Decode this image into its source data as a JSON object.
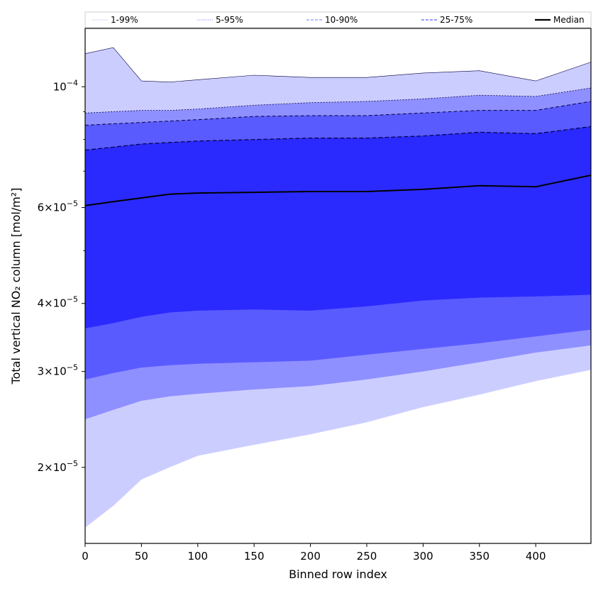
{
  "chart_data": {
    "type": "area",
    "title": "",
    "xlabel": "Binned row index",
    "ylabel": "Total vertical NO₂ column [mol/m²]",
    "xlim": [
      0,
      449
    ],
    "ylim": [
      1.45e-05,
      0.000128
    ],
    "y_scale": "log",
    "grid": false,
    "legend_position": "top",
    "x_ticks": [
      0,
      50,
      100,
      150,
      200,
      250,
      300,
      350,
      400
    ],
    "y_ticks": [
      {
        "value": 2e-05,
        "mantissa": "2",
        "exponent": "−5"
      },
      {
        "value": 3e-05,
        "mantissa": "3",
        "exponent": "−5"
      },
      {
        "value": 4e-05,
        "mantissa": "4",
        "exponent": "−5"
      },
      {
        "value": 6e-05,
        "mantissa": "6",
        "exponent": "−5"
      },
      {
        "value": 0.0001,
        "mantissa": "10",
        "exponent": "−4",
        "power_only": true
      }
    ],
    "y_minor_ticks": [
      5e-05,
      7e-05,
      8e-05,
      9e-05
    ],
    "x": [
      0,
      25,
      50,
      75,
      100,
      150,
      200,
      250,
      300,
      350,
      400,
      449
    ],
    "bands": [
      {
        "name": "1-99%",
        "color": "#cccdff",
        "lower": [
          1.55e-05,
          1.7e-05,
          1.9e-05,
          2e-05,
          2.1e-05,
          2.2e-05,
          2.3e-05,
          2.42e-05,
          2.58e-05,
          2.72e-05,
          2.88e-05,
          3.02e-05
        ],
        "upper": [
          0.000115,
          0.000118,
          0.0001025,
          0.000102,
          0.000103,
          0.000105,
          0.000104,
          0.000104,
          0.000106,
          0.000107,
          0.0001025,
          0.000111
        ]
      },
      {
        "name": "5-95%",
        "color": "#8f90ff",
        "lower": [
          2.45e-05,
          2.55e-05,
          2.65e-05,
          2.7e-05,
          2.73e-05,
          2.78e-05,
          2.82e-05,
          2.9e-05,
          3e-05,
          3.12e-05,
          3.25e-05,
          3.35e-05
        ],
        "upper": [
          8.95e-05,
          9e-05,
          9.05e-05,
          9.05e-05,
          9.1e-05,
          9.25e-05,
          9.35e-05,
          9.4e-05,
          9.5e-05,
          9.65e-05,
          9.6e-05,
          9.95e-05
        ]
      },
      {
        "name": "10-90%",
        "color": "#5a5bff",
        "lower": [
          2.9e-05,
          2.98e-05,
          3.05e-05,
          3.08e-05,
          3.1e-05,
          3.12e-05,
          3.14e-05,
          3.22e-05,
          3.3e-05,
          3.38e-05,
          3.48e-05,
          3.58e-05
        ],
        "upper": [
          8.5e-05,
          8.55e-05,
          8.6e-05,
          8.65e-05,
          8.7e-05,
          8.82e-05,
          8.85e-05,
          8.85e-05,
          8.95e-05,
          9.05e-05,
          9.05e-05,
          9.4e-05
        ]
      },
      {
        "name": "25-75%",
        "color": "#2a2aff",
        "lower": [
          3.6e-05,
          3.68e-05,
          3.78e-05,
          3.85e-05,
          3.88e-05,
          3.9e-05,
          3.88e-05,
          3.95e-05,
          4.05e-05,
          4.1e-05,
          4.12e-05,
          4.15e-05
        ],
        "upper": [
          7.65e-05,
          7.75e-05,
          7.85e-05,
          7.9e-05,
          7.95e-05,
          8e-05,
          8.05e-05,
          8.05e-05,
          8.12e-05,
          8.25e-05,
          8.2e-05,
          8.45e-05
        ]
      }
    ],
    "median": {
      "name": "Median",
      "color": "#000000",
      "values": [
        6.05e-05,
        6.15e-05,
        6.25e-05,
        6.35e-05,
        6.38e-05,
        6.4e-05,
        6.42e-05,
        6.42e-05,
        6.48e-05,
        6.58e-05,
        6.55e-05,
        6.88e-05
      ]
    },
    "legend": [
      {
        "label": "1-99%",
        "color": "#cccdff",
        "style": "solid-thin"
      },
      {
        "label": "5-95%",
        "color": "#8f90ff",
        "style": "dotted"
      },
      {
        "label": "10-90%",
        "color": "#8f90ff",
        "style": "dashed"
      },
      {
        "label": "25-75%",
        "color": "#5a5bff",
        "style": "dashed"
      },
      {
        "label": "Median",
        "color": "#000000",
        "style": "solid-thick"
      }
    ]
  }
}
